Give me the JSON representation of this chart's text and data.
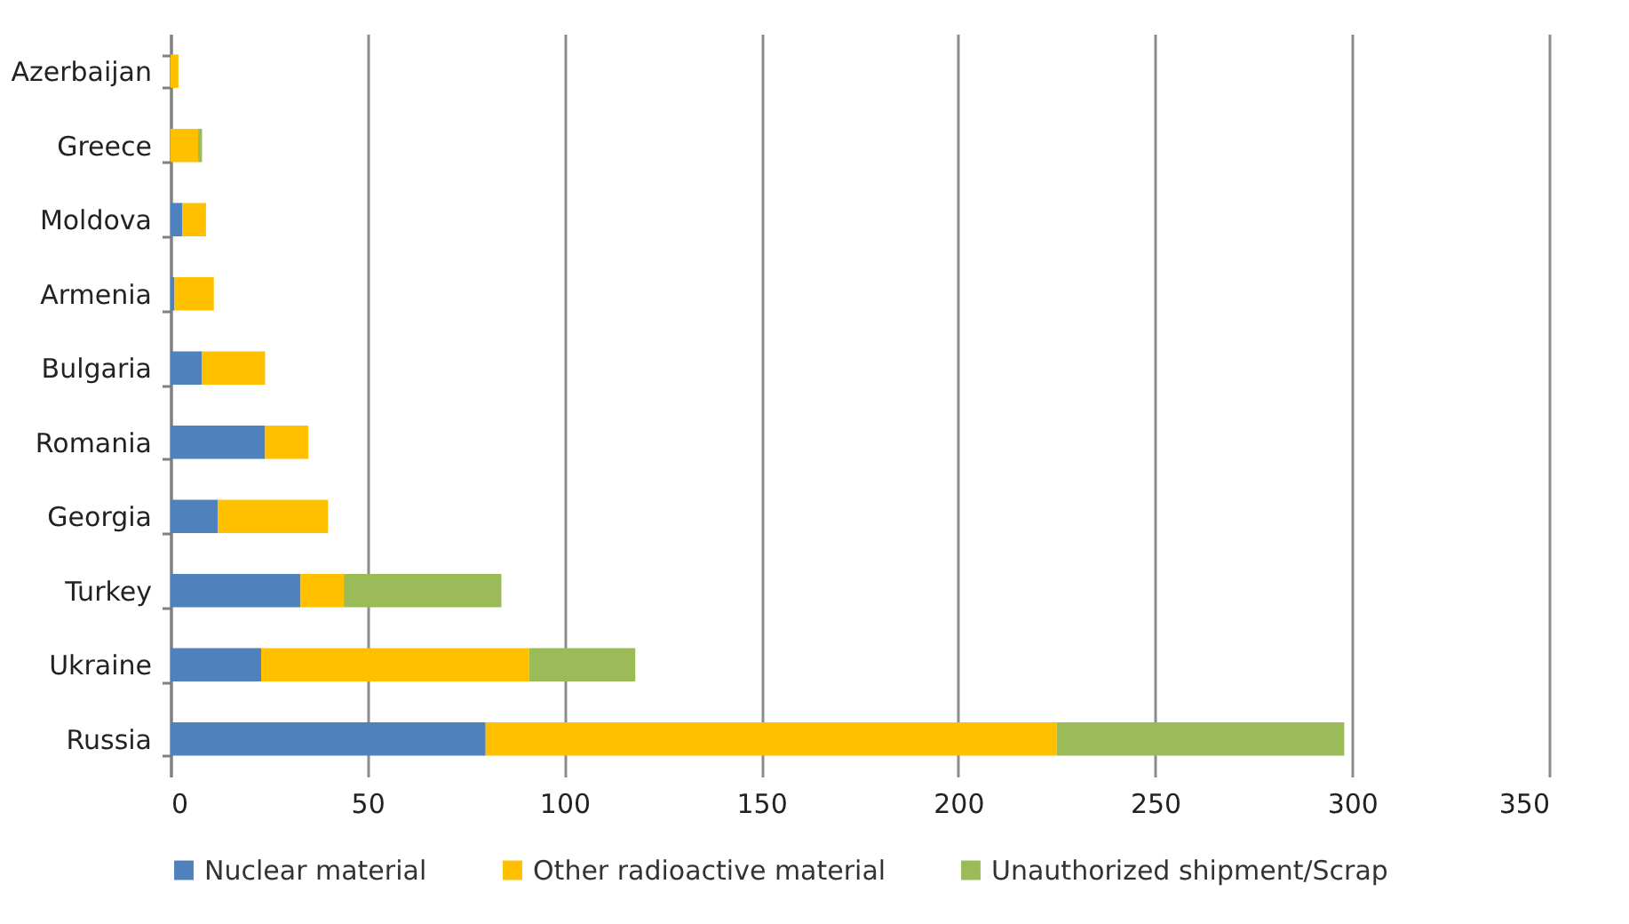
{
  "chart_data": {
    "type": "bar",
    "orientation": "horizontal",
    "stacked": true,
    "categories": [
      "Azerbaijan",
      "Greece",
      "Moldova",
      "Armenia",
      "Bulgaria",
      "Romania",
      "Georgia",
      "Turkey",
      "Ukraine",
      "Russia"
    ],
    "series": [
      {
        "name": "Nuclear material",
        "color": "#4f81bd",
        "values": [
          0,
          0,
          3,
          1,
          8,
          24,
          12,
          33,
          23,
          80
        ]
      },
      {
        "name": "Other radioactive material",
        "color": "#ffc000",
        "values": [
          2,
          7,
          6,
          10,
          16,
          11,
          28,
          11,
          68,
          145
        ]
      },
      {
        "name": "Unauthorized shipment/Scrap",
        "color": "#9bbb59",
        "values": [
          0,
          1,
          0,
          0,
          0,
          0,
          0,
          40,
          27,
          73
        ]
      }
    ],
    "xlim": [
      0,
      350
    ],
    "xticks": [
      0,
      50,
      100,
      150,
      200,
      250,
      300,
      350
    ],
    "grid": "x",
    "legend": "bottom"
  }
}
